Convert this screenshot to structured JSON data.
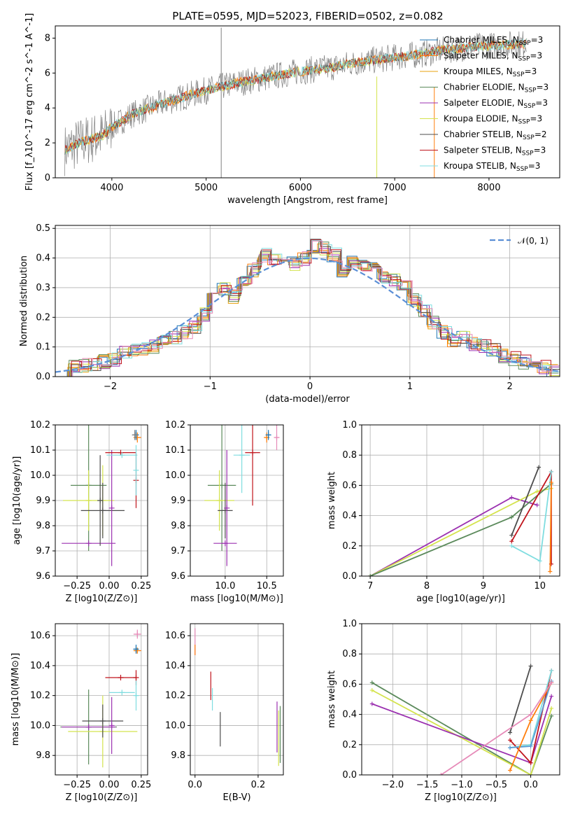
{
  "title": "PLATE=0595, MJD=52023, FIBERID=0502, z=0.082",
  "colors": {
    "chabrier_miles": "#1f77b4",
    "salpeter_miles": "#ff7f0e",
    "kroupa_miles": "#e8a10c",
    "chabrier_elodie": "#5b8a5b",
    "salpeter_elodie": "#9b30b0",
    "kroupa_elodie": "#d4e34d",
    "chabrier_stelib": "#4d4d4d",
    "salpeter_stelib": "#c0141c",
    "kroupa_stelib": "#7fdde0",
    "data": "#808080",
    "gaussian": "#5b8fd6",
    "pink": "#e68ab8",
    "blue2": "#5a9bd4"
  },
  "chart_data": [
    {
      "type": "line",
      "xlabel": "wavelength [Angstrom, rest frame]",
      "ylabel": "Flux [f_λ10^-17 erg cm^-2 s^-1 A^-1]",
      "xlim": [
        3400,
        8750
      ],
      "ylim": [
        0,
        8.7
      ],
      "xticks": [
        4000,
        5000,
        6000,
        7000,
        8000
      ],
      "yticks": [
        0,
        2,
        4,
        6,
        8
      ],
      "series_names": [
        "Chabrier MILES, N_SSP=3",
        "Salpeter MILES, N_SSP=3",
        "Kroupa MILES, N_SSP=3",
        "Chabrier ELODIE, N_SSP=3",
        "Salpeter ELODIE, N_SSP=3",
        "Kroupa ELODIE, N_SSP=3",
        "Chabrier STELIB, N_SSP=2",
        "Salpeter STELIB, N_SSP=3",
        "Kroupa STELIB, N_SSP=3"
      ],
      "legend": "right",
      "spectrum_continuum": {
        "x": [
          3500,
          3700,
          3900,
          4000,
          4200,
          4500,
          4800,
          5000,
          5300,
          5600,
          6000,
          6300,
          6600,
          7000,
          7300,
          7500,
          7800,
          8100,
          8400
        ],
        "y": [
          1.6,
          2.1,
          2.4,
          2.9,
          3.6,
          4.2,
          4.7,
          5.0,
          5.4,
          5.7,
          6.1,
          6.3,
          6.6,
          6.9,
          7.1,
          7.3,
          7.5,
          7.6,
          7.7
        ]
      }
    },
    {
      "type": "line",
      "xlabel": "(data-model)/error",
      "ylabel": "Normed distribution",
      "xlim": [
        -2.55,
        2.5
      ],
      "ylim": [
        0,
        0.51
      ],
      "xticks": [
        -2,
        -1,
        0,
        1,
        2
      ],
      "yticks": [
        0.0,
        0.1,
        0.2,
        0.3,
        0.4,
        0.5
      ],
      "legend": "𝒩(0, 1)",
      "bin_edges": [
        -2.5,
        -2.4,
        -2.3,
        -2.2,
        -2.1,
        -2.0,
        -1.9,
        -1.8,
        -1.7,
        -1.6,
        -1.5,
        -1.4,
        -1.3,
        -1.2,
        -1.1,
        -1.0,
        -0.9,
        -0.8,
        -0.7,
        -0.6,
        -0.5,
        -0.4,
        -0.3,
        -0.2,
        -0.1,
        0.0,
        0.1,
        0.2,
        0.3,
        0.4,
        0.5,
        0.6,
        0.7,
        0.8,
        0.9,
        1.0,
        1.1,
        1.2,
        1.3,
        1.4,
        1.5,
        1.6,
        1.7,
        1.8,
        1.9,
        2.0,
        2.1,
        2.2,
        2.3,
        2.4,
        2.5
      ],
      "hist_mean": [
        0.02,
        0.03,
        0.04,
        0.04,
        0.05,
        0.06,
        0.08,
        0.09,
        0.09,
        0.1,
        0.12,
        0.13,
        0.15,
        0.17,
        0.21,
        0.28,
        0.3,
        0.27,
        0.32,
        0.36,
        0.41,
        0.4,
        0.39,
        0.38,
        0.4,
        0.44,
        0.43,
        0.41,
        0.36,
        0.39,
        0.37,
        0.36,
        0.33,
        0.33,
        0.3,
        0.26,
        0.22,
        0.18,
        0.15,
        0.12,
        0.13,
        0.11,
        0.1,
        0.09,
        0.07,
        0.06,
        0.05,
        0.04,
        0.03,
        0.02
      ]
    },
    {
      "type": "scatter",
      "xlabel": "Z [log10(Z/Z⊙)]",
      "ylabel": "age  [log10(age/yr)]",
      "xlim": [
        -0.42,
        0.3
      ],
      "ylim": [
        9.6,
        10.2
      ],
      "xticks": [
        -0.25,
        0.0,
        0.25
      ],
      "yticks": [
        9.6,
        9.7,
        9.8,
        9.9,
        10.0,
        10.1,
        10.2
      ],
      "points": [
        {
          "s": "chabrier_elodie",
          "x": -0.16,
          "y": 9.96,
          "xe": 0.14,
          "ye": 0.26
        },
        {
          "s": "kroupa_elodie",
          "x": -0.16,
          "y": 9.9,
          "xe": 0.2,
          "ye": 0.12
        },
        {
          "s": "salpeter_elodie",
          "x": -0.16,
          "y": 9.73,
          "xe": 0.21,
          "ye": 0.0
        },
        {
          "s": "kroupa_elodie",
          "x": -0.05,
          "y": 9.9,
          "xe": 0.0,
          "ye": 0.14
        },
        {
          "s": "chabrier_stelib",
          "x": -0.05,
          "y": 9.86,
          "xe": 0.17,
          "ye": 0.11
        },
        {
          "s": "salpeter_elodie",
          "x": 0.02,
          "y": 9.87,
          "xe": 0.0,
          "ye": 0.23
        },
        {
          "s": "chabrier_stelib",
          "x": -0.07,
          "y": 9.9,
          "xe": 0.0,
          "ye": 0.18
        },
        {
          "s": "salpeter_stelib",
          "x": 0.09,
          "y": 10.09,
          "xe": 0.12,
          "ye": 0.0
        },
        {
          "s": "kroupa_stelib",
          "x": 0.1,
          "y": 10.08,
          "xe": 0.12,
          "ye": 0.0
        },
        {
          "s": "salpeter_stelib",
          "x": 0.21,
          "y": 9.98,
          "xe": 0.0,
          "ye": 0.11
        },
        {
          "s": "kroupa_stelib",
          "x": 0.21,
          "y": 10.02,
          "xe": 0.0,
          "ye": 0.1
        },
        {
          "s": "salpeter_miles",
          "x": 0.22,
          "y": 10.15,
          "xe": 0.03,
          "ye": 0.02
        },
        {
          "s": "chabrier_miles",
          "x": 0.21,
          "y": 10.16,
          "xe": 0.02,
          "ye": 0.02
        },
        {
          "s": "data",
          "x": 0.2,
          "y": 10.16,
          "xe": 0.02,
          "ye": 0.02
        }
      ]
    },
    {
      "type": "scatter",
      "xlabel": "mass [log10(M/M⊙)]",
      "ylabel": "",
      "xlim": [
        9.58,
        10.7
      ],
      "ylim": [
        9.6,
        10.2
      ],
      "xticks": [
        10.0,
        10.5
      ],
      "yticks": [
        9.6,
        9.7,
        9.8,
        9.9,
        10.0,
        10.1,
        10.2
      ],
      "points": [
        {
          "s": "chabrier_elodie",
          "x": 9.96,
          "y": 9.96,
          "xe": 0.17,
          "ye": 0.26
        },
        {
          "s": "kroupa_elodie",
          "x": 9.93,
          "y": 9.9,
          "xe": 0.18,
          "ye": 0.12
        },
        {
          "s": "salpeter_elodie",
          "x": 10.0,
          "y": 9.73,
          "xe": 0.14,
          "ye": 0.0
        },
        {
          "s": "chabrier_stelib",
          "x": 10.0,
          "y": 9.86,
          "xe": 0.09,
          "ye": 0.11
        },
        {
          "s": "salpeter_elodie",
          "x": 10.02,
          "y": 9.87,
          "xe": 0.0,
          "ye": 0.23
        },
        {
          "s": "kroupa_stelib",
          "x": 10.2,
          "y": 10.08,
          "xe": 0.1,
          "ye": 0.15
        },
        {
          "s": "salpeter_stelib",
          "x": 10.33,
          "y": 10.09,
          "xe": 0.09,
          "ye": 0.21
        },
        {
          "s": "salpeter_miles",
          "x": 10.5,
          "y": 10.15,
          "xe": 0.03,
          "ye": 0.02
        },
        {
          "s": "chabrier_miles",
          "x": 10.52,
          "y": 10.16,
          "xe": 0.03,
          "ye": 0.02
        },
        {
          "s": "pink",
          "x": 10.62,
          "y": 10.15,
          "xe": 0.03,
          "ye": 0.05
        }
      ]
    },
    {
      "type": "line",
      "xlabel": "age  [log10(age/yr)]",
      "ylabel": "mass weight",
      "xlim": [
        6.85,
        10.35
      ],
      "ylim": [
        0,
        1.0
      ],
      "xticks": [
        7,
        8,
        9,
        10
      ],
      "yticks": [
        0.0,
        0.2,
        0.4,
        0.6,
        0.8,
        1.0
      ]
    },
    {
      "type": "scatter",
      "xlabel": "Z [log10(Z/Z⊙)]",
      "ylabel": "mass [log10(M/M⊙)]",
      "xlim": [
        -0.42,
        0.3
      ],
      "ylim": [
        9.67,
        10.68
      ],
      "xticks": [
        -0.25,
        0.0,
        0.25
      ],
      "yticks": [
        9.8,
        10.0,
        10.2,
        10.4,
        10.6
      ]
    },
    {
      "type": "scatter",
      "xlabel": "E(B-V)",
      "ylabel": "",
      "xlim": [
        -0.015,
        0.28
      ],
      "ylim": [
        9.67,
        10.68
      ],
      "xticks": [
        0.0,
        0.2
      ],
      "yticks": [
        9.8,
        10.0,
        10.2,
        10.4,
        10.6
      ]
    },
    {
      "type": "line",
      "xlabel": "Z [log10(Z/Z⊙)]",
      "ylabel": "mass weight",
      "xlim": [
        -2.45,
        0.42
      ],
      "ylim": [
        0,
        1.0
      ],
      "xticks": [
        -2.0,
        -1.5,
        -1.0,
        -0.5,
        0.0
      ],
      "yticks": [
        0.0,
        0.2,
        0.4,
        0.6,
        0.8,
        1.0
      ]
    }
  ]
}
